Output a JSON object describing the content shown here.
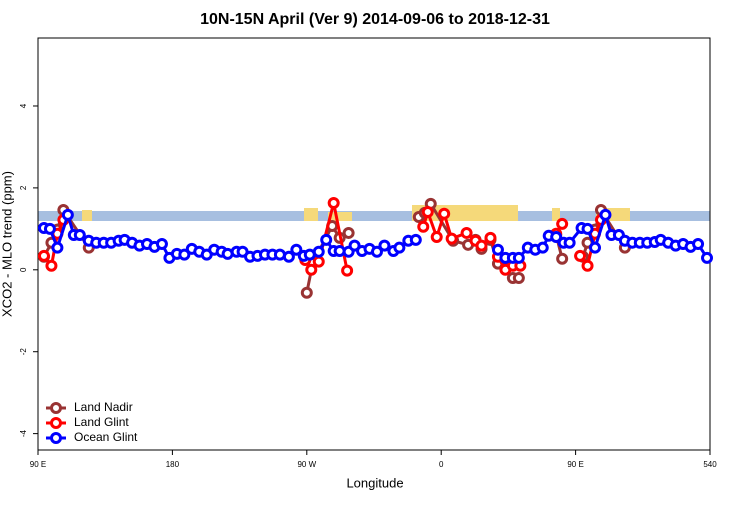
{
  "chart_data": {
    "type": "line",
    "title": "10N-15N April (Ver 9)   2014-09-06 to 2018-12-31",
    "x_label": "Longitude",
    "y_label": "XCO2 - MLO trend (ppm)",
    "xlim": [
      90,
      540
    ],
    "ylim": [
      -4.4,
      5.66
    ],
    "xticks": [
      {
        "value": 90,
        "label": "90 E"
      },
      180,
      {
        "value": 270,
        "label": "90 W"
      },
      {
        "value": 360,
        "label": "0"
      },
      {
        "value": 450,
        "label": "90 E"
      },
      540
    ],
    "yticks": [
      -4,
      -2,
      0,
      2,
      4
    ],
    "legend": "bottom-left",
    "series": [
      {
        "name": "Land Nadir",
        "color": "#993333",
        "x": [
          94,
          99,
          103,
          107,
          124,
          null,
          270,
          274,
          287,
          292,
          298,
          null,
          345,
          349,
          353,
          368,
          378,
          383,
          387,
          393,
          398,
          403,
          408,
          412,
          null,
          437,
          441,
          null,
          455,
          458,
          463,
          467,
          483
        ],
        "values": [
          0.32,
          0.66,
          0.98,
          1.46,
          0.54,
          null,
          -0.56,
          0.17,
          1.07,
          0.78,
          0.9,
          null,
          1.29,
          1.39,
          1.61,
          0.71,
          0.61,
          0.73,
          0.51,
          0.73,
          0.15,
          0.05,
          -0.2,
          -0.2,
          null,
          0.85,
          0.27,
          null,
          0.32,
          0.66,
          0.98,
          1.46,
          0.54
        ]
      },
      {
        "name": "Land Glint",
        "color": "#ff0000",
        "x": [
          94,
          99,
          103,
          107,
          null,
          269,
          273,
          278,
          288,
          297,
          null,
          348,
          351,
          357,
          362,
          367,
          377,
          383,
          387,
          393,
          398,
          403,
          408,
          413,
          null,
          437,
          441,
          null,
          453,
          458,
          463,
          467
        ],
        "values": [
          0.34,
          0.1,
          0.88,
          1.22,
          null,
          0.24,
          0.0,
          0.2,
          1.63,
          -0.02,
          null,
          1.05,
          1.41,
          0.8,
          1.37,
          0.76,
          0.9,
          0.71,
          0.59,
          0.78,
          0.32,
          0.0,
          0.1,
          0.1,
          null,
          0.88,
          1.12,
          null,
          0.34,
          0.1,
          0.88,
          1.22
        ]
      },
      {
        "name": "Ocean Glint",
        "color": "#0000ff",
        "x": [
          94,
          98,
          103,
          110,
          114,
          118,
          124,
          129,
          134,
          139,
          144,
          148,
          153,
          158,
          163,
          168,
          173,
          178,
          183,
          188,
          193,
          198,
          203,
          208,
          213,
          217,
          223,
          227,
          232,
          237,
          242,
          247,
          252,
          258,
          263,
          268,
          272,
          278,
          283,
          288,
          292,
          298,
          302,
          307,
          312,
          317,
          322,
          328,
          332,
          338,
          343,
          null,
          398,
          403,
          408,
          412,
          418,
          423,
          428,
          432,
          437,
          442,
          446,
          454,
          458,
          463,
          470,
          474,
          479,
          483,
          488,
          493,
          498,
          503,
          507,
          512,
          517,
          522,
          527,
          532,
          538
        ],
        "values": [
          1.02,
          1.0,
          0.54,
          1.34,
          0.85,
          0.85,
          0.71,
          0.66,
          0.66,
          0.66,
          0.71,
          0.73,
          0.66,
          0.59,
          0.63,
          0.56,
          0.63,
          0.29,
          0.39,
          0.37,
          0.51,
          0.44,
          0.37,
          0.49,
          0.44,
          0.39,
          0.44,
          0.44,
          0.32,
          0.34,
          0.37,
          0.37,
          0.37,
          0.32,
          0.49,
          0.34,
          0.37,
          0.44,
          0.73,
          0.46,
          0.46,
          0.44,
          0.59,
          0.46,
          0.51,
          0.44,
          0.59,
          0.46,
          0.54,
          0.71,
          0.73,
          null,
          0.49,
          0.29,
          0.29,
          0.29,
          0.54,
          0.49,
          0.54,
          0.83,
          0.8,
          0.66,
          0.66,
          1.02,
          1.0,
          0.54,
          1.34,
          0.85,
          0.85,
          0.71,
          0.66,
          0.66,
          0.66,
          0.68,
          0.73,
          0.66,
          0.59,
          0.63,
          0.56,
          0.63,
          0.29
        ]
      }
    ]
  }
}
